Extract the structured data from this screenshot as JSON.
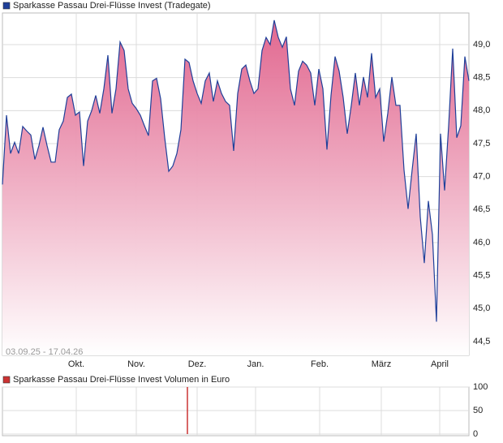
{
  "chart_data": [
    {
      "type": "area",
      "title": "Sparkasse Passau Drei-Flüsse Invest (Tradegate)",
      "annotation": "03.09.25 - 17.04.26",
      "series": [
        {
          "name": "Sparkasse Passau Drei-Flüsse Invest (Tradegate)",
          "color": "#1f3f99",
          "values": [
            46.88,
            47.93,
            47.35,
            47.52,
            47.35,
            47.76,
            47.69,
            47.63,
            47.26,
            47.47,
            47.75,
            47.47,
            47.22,
            47.22,
            47.71,
            47.84,
            48.2,
            48.25,
            47.93,
            47.98,
            47.16,
            47.84,
            48.0,
            48.23,
            47.96,
            48.33,
            48.84,
            47.96,
            48.33,
            49.04,
            48.91,
            48.33,
            48.11,
            48.03,
            47.93,
            47.77,
            47.62,
            48.45,
            48.49,
            48.18,
            47.59,
            47.08,
            47.16,
            47.35,
            47.71,
            48.78,
            48.73,
            48.45,
            48.26,
            48.11,
            48.45,
            48.57,
            48.14,
            48.45,
            48.26,
            48.14,
            48.08,
            47.39,
            48.26,
            48.63,
            48.69,
            48.45,
            48.26,
            48.33,
            48.91,
            49.11,
            49.0,
            49.37,
            49.11,
            48.96,
            49.12,
            48.33,
            48.08,
            48.6,
            48.75,
            48.69,
            48.57,
            48.08,
            48.63,
            48.33,
            47.41,
            48.23,
            48.82,
            48.6,
            48.2,
            47.65,
            48.08,
            48.57,
            48.08,
            48.51,
            48.2,
            48.87,
            48.2,
            48.33,
            47.53,
            47.96,
            48.51,
            48.08,
            48.08,
            47.1,
            46.51,
            47.1,
            47.65,
            46.39,
            45.69,
            46.63,
            46.12,
            44.8,
            47.65,
            46.79,
            47.77,
            48.94,
            47.59,
            47.77,
            48.82,
            48.45
          ]
        }
      ],
      "fill_color": "#e0608a",
      "xlim": [
        0,
        115
      ],
      "xticks": [
        {
          "value": 18.2,
          "label": "Okt."
        },
        {
          "value": 33,
          "label": "Nov."
        },
        {
          "value": 48,
          "label": "Dez."
        },
        {
          "value": 62.4,
          "label": "Jan."
        },
        {
          "value": 78.2,
          "label": "Feb."
        },
        {
          "value": 93.4,
          "label": "März"
        },
        {
          "value": 107.8,
          "label": "April"
        }
      ],
      "ylim": [
        44.29,
        49.48
      ],
      "yticks": [
        {
          "value": 44.5,
          "label": "44,5"
        },
        {
          "value": 45,
          "label": "45,0"
        },
        {
          "value": 45.5,
          "label": "45,5"
        },
        {
          "value": 46,
          "label": "46,0"
        },
        {
          "value": 46.5,
          "label": "46,5"
        },
        {
          "value": 47,
          "label": "47,0"
        },
        {
          "value": 47.5,
          "label": "47,5"
        },
        {
          "value": 48,
          "label": "48,0"
        },
        {
          "value": 48.5,
          "label": "48,5"
        },
        {
          "value": 49,
          "label": "49,0"
        }
      ],
      "grid": true
    },
    {
      "type": "bar",
      "series": [
        {
          "name": "Sparkasse Passau Drei-Flüsse Invest Volumen in Euro",
          "color": "#cc3333",
          "values": [
            100
          ]
        }
      ],
      "x": [
        45.6
      ],
      "xlim": [
        0,
        115
      ],
      "ylim": [
        0,
        100
      ],
      "yticks": [
        0,
        50,
        100
      ],
      "grid": true
    }
  ]
}
